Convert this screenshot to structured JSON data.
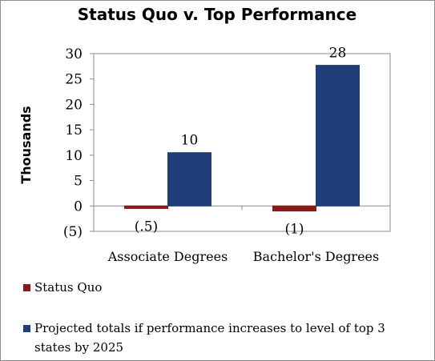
{
  "chart_data": {
    "type": "bar",
    "title": "Status Quo v. Top Performance",
    "ylabel": "Thousands",
    "xlabel": "",
    "ylim": [
      -5,
      30
    ],
    "yticks": [
      30,
      25,
      20,
      15,
      10,
      5,
      0,
      -5
    ],
    "ytick_labels": [
      "30",
      "25",
      "20",
      "15",
      "10",
      "5",
      "0",
      "(5)"
    ],
    "categories": [
      "Associate Degrees",
      "Bachelor's Degrees"
    ],
    "series": [
      {
        "name": "Status Quo",
        "color": "#8b1a1a",
        "values": [
          -0.5,
          -1
        ],
        "labels": [
          "(.5)",
          "(1)"
        ]
      },
      {
        "name": "Projected totals if performance increases to level of top 3 states by 2025",
        "color": "#1f3e7a",
        "values": [
          10.5,
          27.7
        ],
        "labels": [
          "10",
          "28"
        ]
      }
    ],
    "grid": false,
    "legend_position": "bottom"
  },
  "legend": {
    "line1": "Status Quo",
    "line2a": "Projected totals if performance increases to level of top 3",
    "line2b": "states by 2025"
  }
}
